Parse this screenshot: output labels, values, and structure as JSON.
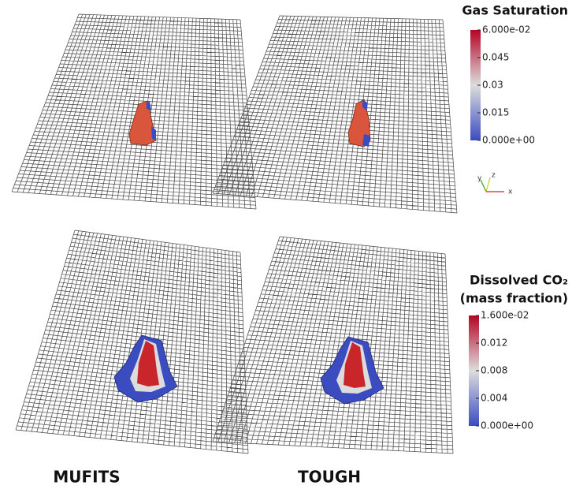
{
  "panels": [
    {
      "label": "MUFITS"
    },
    {
      "label": "TOUGH"
    }
  ],
  "colorbars": [
    {
      "title": [
        "Gas Saturation"
      ],
      "lim": [
        0,
        0.06
      ],
      "ticks": [
        {
          "value": 0.06,
          "label": "6.000e-02"
        },
        0.045,
        0.03,
        0.015,
        {
          "value": 0,
          "label": "0.000e+00"
        }
      ]
    },
    {
      "title": [
        "Dissolved CO₂",
        "(mass fraction)"
      ],
      "lim": [
        0,
        0.016
      ],
      "ticks": [
        {
          "value": 0.016,
          "label": "1.600e-02"
        },
        0.012,
        0.008,
        0.004,
        {
          "value": 0,
          "label": "0.000e+00"
        }
      ]
    }
  ],
  "axes_triad": [
    "y",
    "z",
    "x"
  ]
}
